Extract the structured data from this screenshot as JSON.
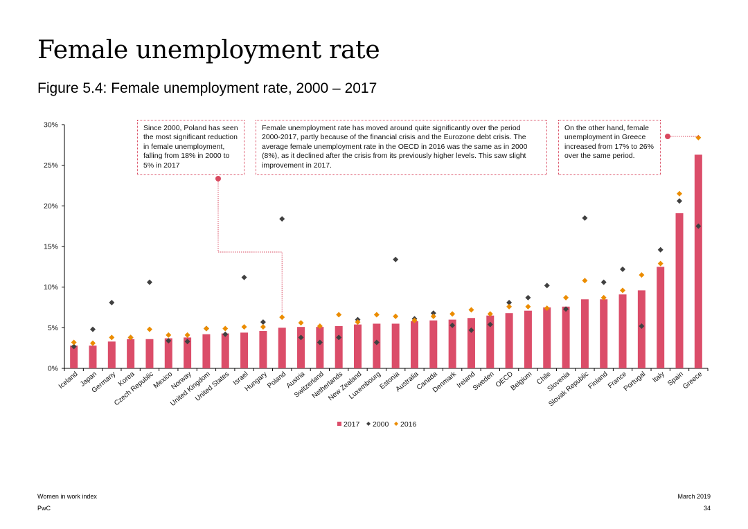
{
  "page": {
    "title": "Female unemployment rate",
    "figure_title": "Figure 5.4: Female unemployment rate, 2000 – 2017"
  },
  "annotations": {
    "poland": "Since 2000, Poland has seen the most significant reduction in female unemployment, falling from 18% in 2000 to 5% in 2017",
    "oecd": "Female unemployment rate has moved around quite significantly over the period 2000-2017, partly because of the financial crisis and the Eurozone debt crisis. The average female unemployment rate in the OECD in 2016 was the same as in 2000 (8%), as it declined after the crisis from its previously higher levels. This saw slight improvement in 2017.",
    "greece": "On the other hand, female unemployment in Greece increased from 17% to 26% over the same period."
  },
  "footer": {
    "left_line1": "Women in work index",
    "left_line2": "PwC",
    "right_line1": "March 2019",
    "right_line2": "34"
  },
  "colors": {
    "bar_2017": "#db4d69",
    "marker_2000": "#404040",
    "marker_2016": "#eb8c00",
    "annotation_line": "#d9485f"
  },
  "chart_data": {
    "type": "bar",
    "categories": [
      "Iceland",
      "Japan",
      "Germany",
      "Korea",
      "Czech Republic",
      "Mexico",
      "Norway",
      "United Kingdom",
      "United States",
      "Israel",
      "Hungary",
      "Poland",
      "Austria",
      "Switzerland",
      "Netherlands",
      "New Zealand",
      "Luxembourg",
      "Estonia",
      "Australia",
      "Canada",
      "Denmark",
      "Ireland",
      "Sweden",
      "OECD",
      "Belgium",
      "Chile",
      "Slovenia",
      "Slovak Republic",
      "Finland",
      "France",
      "Portugal",
      "Italy",
      "Spain",
      "Greece"
    ],
    "series": [
      {
        "name": "2017",
        "kind": "bar",
        "values": [
          2.8,
          2.8,
          3.3,
          3.6,
          3.6,
          3.7,
          3.8,
          4.2,
          4.3,
          4.4,
          4.6,
          5.0,
          5.1,
          5.1,
          5.2,
          5.4,
          5.5,
          5.5,
          5.8,
          5.9,
          6.0,
          6.2,
          6.5,
          6.8,
          7.1,
          7.5,
          7.6,
          8.5,
          8.5,
          9.1,
          9.6,
          12.5,
          19.1,
          26.3
        ]
      },
      {
        "name": "2000",
        "kind": "marker",
        "values": [
          2.7,
          4.8,
          8.1,
          3.8,
          10.6,
          3.4,
          3.3,
          4.9,
          4.2,
          11.2,
          5.7,
          18.4,
          3.8,
          3.2,
          3.8,
          6.0,
          3.2,
          13.4,
          6.1,
          6.8,
          5.3,
          4.7,
          5.4,
          8.1,
          8.7,
          10.2,
          7.3,
          18.5,
          10.6,
          12.2,
          5.2,
          14.6,
          20.6,
          17.5
        ]
      },
      {
        "name": "2016",
        "kind": "marker",
        "values": [
          3.2,
          3.1,
          3.8,
          3.8,
          4.8,
          4.1,
          4.1,
          4.9,
          4.9,
          5.1,
          5.1,
          6.3,
          5.6,
          5.2,
          6.6,
          5.7,
          6.6,
          6.4,
          5.9,
          6.4,
          6.7,
          7.2,
          6.7,
          7.6,
          7.6,
          7.4,
          8.7,
          10.8,
          8.7,
          9.6,
          11.5,
          12.9,
          21.5,
          28.4
        ]
      }
    ],
    "ylim": [
      0,
      30
    ],
    "yticks": [
      0,
      5,
      10,
      15,
      20,
      25,
      30
    ],
    "ytick_labels": [
      "0%",
      "5%",
      "10%",
      "15%",
      "20%",
      "25%",
      "30%"
    ],
    "legend": [
      "2017",
      "2000",
      "2016"
    ],
    "legend_position": "bottom-center",
    "grid": false
  }
}
